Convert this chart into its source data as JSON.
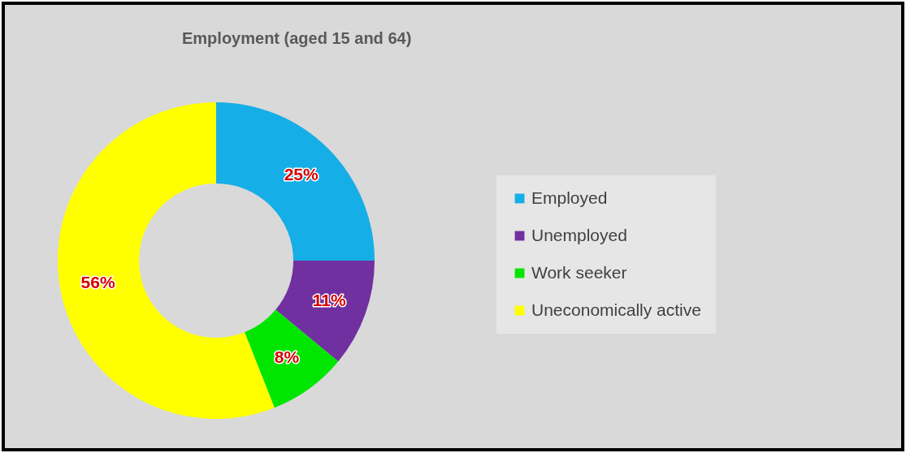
{
  "chart_data": {
    "type": "donut",
    "title": "Employment  (aged  15 and 64)",
    "categories": [
      "Employed",
      "Unemployed",
      "Work seeker",
      "Uneconomically active"
    ],
    "values": [
      25,
      11,
      8,
      56
    ],
    "colors": [
      "#16aee6",
      "#7030a0",
      "#00e600",
      "#ffff00"
    ],
    "value_labels": [
      "25%",
      "11%",
      "8%",
      "56%"
    ],
    "legend": "right"
  }
}
